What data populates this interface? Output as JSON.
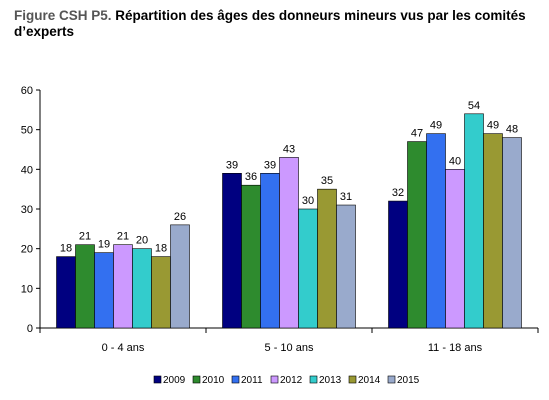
{
  "title": {
    "prefix": "Figure CSH P5.",
    "text": " Répartition des âges des donneurs mineurs vus par les comités d’experts"
  },
  "chart_data": {
    "type": "bar",
    "categories": [
      "0 - 4 ans",
      "5 - 10 ans",
      "11 - 18 ans"
    ],
    "series": [
      {
        "name": "2009",
        "color": "#000080",
        "values": [
          18,
          39,
          32
        ]
      },
      {
        "name": "2010",
        "color": "#2E8B2E",
        "values": [
          21,
          36,
          47
        ]
      },
      {
        "name": "2011",
        "color": "#3370F0",
        "values": [
          19,
          39,
          49
        ]
      },
      {
        "name": "2012",
        "color": "#CC99FF",
        "values": [
          21,
          43,
          40
        ]
      },
      {
        "name": "2013",
        "color": "#33CCCC",
        "values": [
          20,
          30,
          54
        ]
      },
      {
        "name": "2014",
        "color": "#999933",
        "values": [
          18,
          35,
          49
        ]
      },
      {
        "name": "2015",
        "color": "#99AACC",
        "values": [
          26,
          31,
          48
        ]
      }
    ],
    "data_labels": [
      [
        "18",
        "21",
        "19",
        "21",
        "20",
        "18",
        "26"
      ],
      [
        "39",
        "36",
        "39",
        "43",
        "30",
        "35",
        "31"
      ],
      [
        "32",
        "47",
        "49",
        "40",
        "54",
        "49",
        "48"
      ]
    ],
    "yticks": [
      "0",
      "10",
      "20",
      "30",
      "40",
      "50",
      "60"
    ],
    "ylim": [
      0,
      60
    ],
    "grid": false,
    "legend_position": "bottom"
  }
}
